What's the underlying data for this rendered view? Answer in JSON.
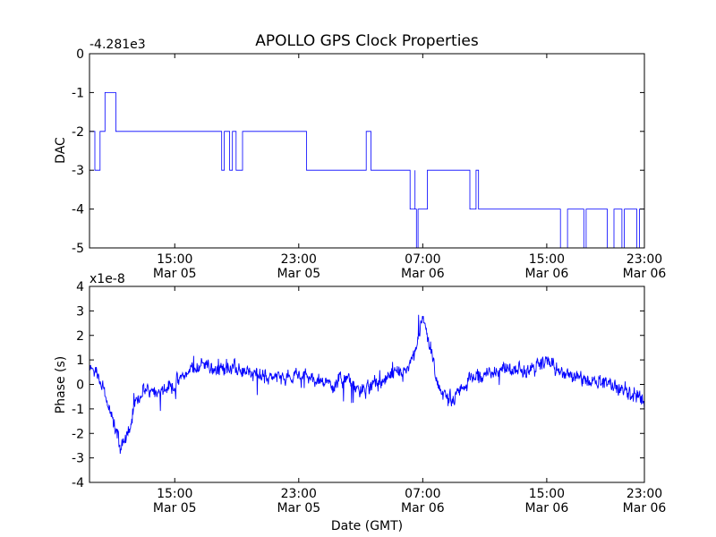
{
  "figure": {
    "title": "APOLLO GPS Clock Properties",
    "xlabel": "Date (GMT)"
  },
  "chart_data": [
    {
      "type": "line",
      "name": "dac",
      "ylabel": "DAC",
      "offset_label": "-4.281e3",
      "xlim_hours": [
        9.5,
        45.3
      ],
      "ylim": [
        -5,
        0
      ],
      "yticks": [
        "0",
        "-1",
        "-2",
        "-3",
        "-4",
        "-5"
      ],
      "ytick_values": [
        0,
        -1,
        -2,
        -3,
        -4,
        -5
      ],
      "xtick_hours": [
        15,
        23,
        31,
        39,
        47
      ],
      "xticks": [
        {
          "time": "15:00",
          "date": "Mar 05"
        },
        {
          "time": "23:00",
          "date": "Mar 05"
        },
        {
          "time": "07:00",
          "date": "Mar 06"
        },
        {
          "time": "15:00",
          "date": "Mar 06"
        },
        {
          "time": "23:00",
          "date": "Mar 06"
        }
      ],
      "line_color": "#0000ff",
      "grid": false,
      "segments": [
        {
          "start": 9.5,
          "end": 10.5,
          "base": -2,
          "alt": -3,
          "rate": 0.35
        },
        {
          "start": 10.5,
          "end": 11.2,
          "base": -1,
          "alt": 0,
          "rate": 0.3
        },
        {
          "start": 11.2,
          "end": 13.5,
          "base": -2,
          "alt": -1,
          "rate": 0.06
        },
        {
          "start": 13.5,
          "end": 14.6,
          "base": -2,
          "alt": -1,
          "rate": 0.05
        },
        {
          "start": 14.6,
          "end": 16.6,
          "base": -2,
          "alt": -3,
          "rate": 0.0
        },
        {
          "start": 16.6,
          "end": 20.8,
          "base": -2,
          "alt": -3,
          "rate": 0.22
        },
        {
          "start": 20.8,
          "end": 23.5,
          "base": -2,
          "alt": -3,
          "rate": 0.07
        },
        {
          "start": 23.5,
          "end": 26.3,
          "base": -3,
          "alt": -2,
          "rate": 0.0
        },
        {
          "start": 26.3,
          "end": 29.6,
          "base": -3,
          "alt": -2,
          "rate": 0.2
        },
        {
          "start": 29.6,
          "end": 30.5,
          "base": -3,
          "alt": -4,
          "rate": 0.08
        },
        {
          "start": 30.5,
          "end": 31.3,
          "base": -4,
          "alt": -5,
          "rate": 0.25
        },
        {
          "start": 31.3,
          "end": 32.6,
          "base": -3,
          "alt": -2,
          "rate": 0.1
        },
        {
          "start": 32.6,
          "end": 34.6,
          "base": -3,
          "alt": -4,
          "rate": 0.15
        },
        {
          "start": 34.6,
          "end": 37.4,
          "base": -4,
          "alt": -3,
          "rate": 0.02
        },
        {
          "start": 37.4,
          "end": 45.3,
          "base": -4,
          "alt": -5,
          "rate": 0.22
        }
      ]
    },
    {
      "type": "line",
      "name": "phase",
      "ylabel": "Phase (s)",
      "offset_label": "x1e-8",
      "xlim_hours": [
        9.5,
        45.3
      ],
      "ylim": [
        -4,
        4
      ],
      "yticks": [
        "4",
        "3",
        "2",
        "1",
        "0",
        "-1",
        "-2",
        "-3",
        "-4"
      ],
      "ytick_values": [
        4,
        3,
        2,
        1,
        0,
        -1,
        -2,
        -3,
        -4
      ],
      "xtick_hours": [
        15,
        23,
        31,
        39,
        47
      ],
      "xticks": [
        {
          "time": "15:00",
          "date": "Mar 05"
        },
        {
          "time": "23:00",
          "date": "Mar 05"
        },
        {
          "time": "07:00",
          "date": "Mar 06"
        },
        {
          "time": "15:00",
          "date": "Mar 06"
        },
        {
          "time": "23:00",
          "date": "Mar 06"
        }
      ],
      "line_color": "#0000ff",
      "grid": false,
      "noise": 0.35,
      "trend_hours": [
        9.5,
        10.0,
        10.5,
        11.0,
        11.5,
        12.0,
        12.5,
        13.0,
        14.0,
        15.0,
        16.0,
        17.0,
        17.5,
        18.5,
        20.0,
        22.0,
        23.0,
        24.0,
        25.0,
        26.0,
        27.0,
        28.0,
        29.0,
        30.0,
        30.5,
        31.0,
        31.5,
        32.0,
        33.0,
        34.0,
        35.0,
        36.0,
        37.0,
        38.0,
        39.0,
        40.0,
        41.0,
        42.0,
        43.0,
        44.0,
        45.0,
        45.3
      ],
      "trend_values": [
        0.6,
        0.5,
        -0.3,
        -1.5,
        -2.5,
        -2.0,
        -0.8,
        -0.2,
        -0.2,
        0.0,
        0.6,
        0.9,
        0.6,
        0.7,
        0.4,
        0.3,
        0.4,
        0.2,
        0.0,
        0.2,
        -0.3,
        0.0,
        0.3,
        0.5,
        1.2,
        2.7,
        1.5,
        -0.3,
        -0.6,
        0.2,
        0.4,
        0.6,
        0.6,
        0.6,
        1.0,
        0.4,
        0.3,
        0.2,
        0.0,
        -0.3,
        -0.5,
        -0.7
      ]
    }
  ]
}
